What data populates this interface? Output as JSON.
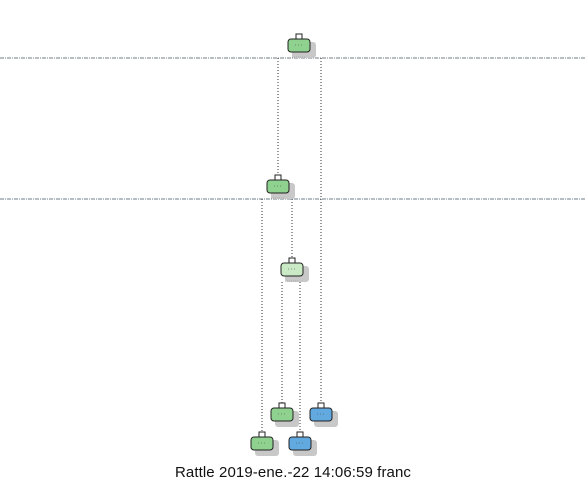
{
  "footer": {
    "caption": "Rattle 2019-ene.-22 14:06:59 franc"
  },
  "colors": {
    "class_a_fill": "#8fd28f",
    "class_a_light_fill": "#c9eac5",
    "class_b_fill": "#62a9e0",
    "node_stroke": "#222222",
    "shadow": "#c8c8c8",
    "edge": "#333333",
    "level_line": "#6c8088"
  },
  "tree": {
    "nodes": [
      {
        "id": "n1",
        "class": "a",
        "shade": "normal"
      },
      {
        "id": "n2",
        "class": "a",
        "shade": "normal"
      },
      {
        "id": "n3",
        "class": "a",
        "shade": "light"
      },
      {
        "id": "n4",
        "class": "a",
        "shade": "normal"
      },
      {
        "id": "n5",
        "class": "b",
        "shade": "normal"
      },
      {
        "id": "n6",
        "class": "a",
        "shade": "normal"
      },
      {
        "id": "n7",
        "class": "b",
        "shade": "normal"
      }
    ],
    "edges": [
      {
        "from": "n1",
        "to": "n2"
      },
      {
        "from": "n1",
        "to": "n5"
      },
      {
        "from": "n2",
        "to": "n6"
      },
      {
        "from": "n2",
        "to": "n3"
      },
      {
        "from": "n3",
        "to": "n4"
      },
      {
        "from": "n3",
        "to": "n7"
      }
    ]
  }
}
